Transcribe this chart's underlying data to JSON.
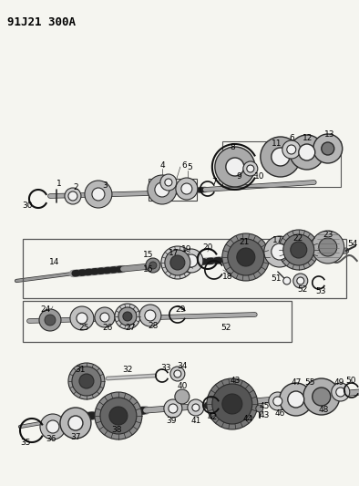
{
  "background_color": "#f5f5f0",
  "diagram_id": "91J21 300A",
  "fig_width": 3.94,
  "fig_height": 5.33,
  "dpi": 100,
  "label_fontsize": 6.5,
  "label_color": "#000000",
  "part_dark": "#2a2a2a",
  "part_mid": "#888888",
  "part_light": "#cccccc",
  "part_white": "#f0f0f0",
  "shaft_stripe1": "#222222",
  "shaft_stripe2": "#aaaaaa",
  "line_color": "#111111",
  "box_color": "#333333"
}
